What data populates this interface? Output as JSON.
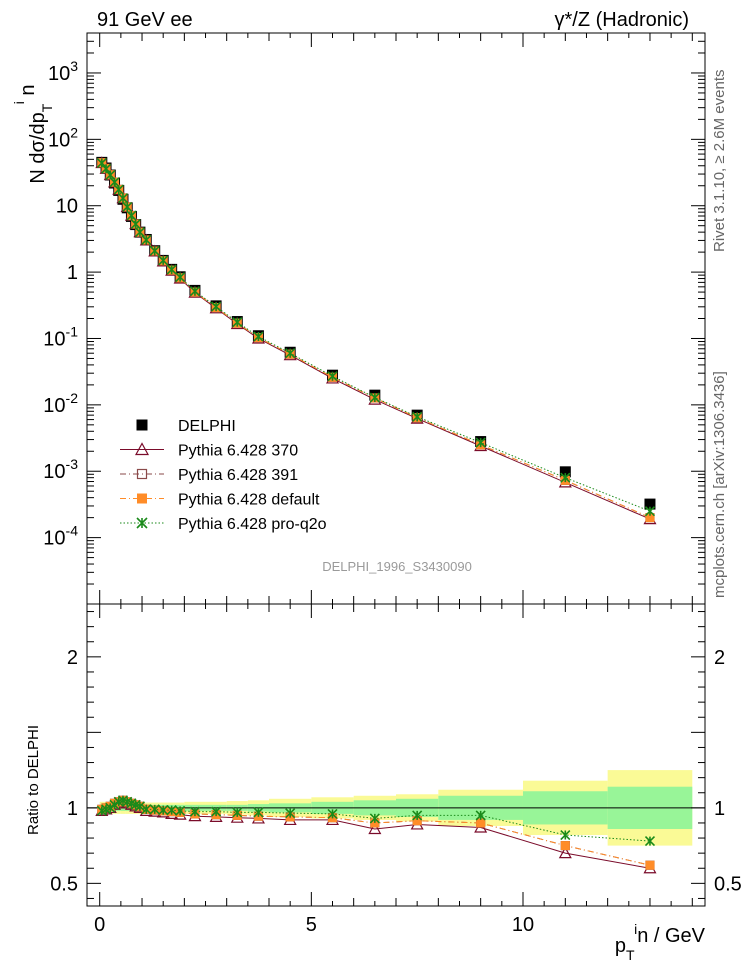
{
  "header": {
    "left_title": "91 GeV ee",
    "right_title": "γ*/Z (Hadronic)"
  },
  "side_labels": {
    "rivet": "Rivet 3.1.10, ≥ 2.6M events",
    "mcplots": "mcplots.cern.ch [arXiv:1306.3436]"
  },
  "watermark": "DELPHI_1996_S3430090",
  "chart_data": [
    {
      "type": "scatter",
      "panel": "main",
      "ylabel": "N dσ/dp_T^i n",
      "yscale": "log",
      "ylim": [
        1e-05,
        4000
      ],
      "xlim": [
        -0.3,
        14.3
      ],
      "ytick_labels": [
        "10^-4",
        "10^-3",
        "10^-2",
        "10^-1",
        "1",
        "10",
        "10^2",
        "10^3"
      ],
      "legend_position": "lower-left",
      "x": [
        0.05,
        0.15,
        0.25,
        0.35,
        0.45,
        0.55,
        0.65,
        0.75,
        0.85,
        0.95,
        1.1,
        1.3,
        1.5,
        1.7,
        1.9,
        2.25,
        2.75,
        3.25,
        3.75,
        4.5,
        5.5,
        6.5,
        7.5,
        9.0,
        11.0,
        13.0
      ],
      "series": [
        {
          "name": "DELPHI",
          "color": "#000000",
          "marker": "filled-square",
          "values": [
            45,
            37,
            29,
            22,
            17,
            12.5,
            9.3,
            6.9,
            5.2,
            4.0,
            3.1,
            2.1,
            1.5,
            1.1,
            0.85,
            0.53,
            0.31,
            0.18,
            0.11,
            0.062,
            0.028,
            0.014,
            0.007,
            0.0028,
            0.00098,
            0.00032
          ]
        },
        {
          "name": "Pythia 6.428 370",
          "color": "#7a0b2a",
          "marker": "open-triangle",
          "line": "solid",
          "values": [
            44,
            36,
            29,
            22.5,
            17.5,
            13,
            9.6,
            7.1,
            5.3,
            4.0,
            3.0,
            2.05,
            1.45,
            1.05,
            0.8,
            0.49,
            0.285,
            0.165,
            0.1,
            0.056,
            0.025,
            0.012,
            0.0062,
            0.0024,
            0.00068,
            0.00019
          ]
        },
        {
          "name": "Pythia 6.428 391",
          "color": "#8a4a4a",
          "marker": "open-square",
          "line": "dashdot",
          "values": [
            44.5,
            36.5,
            29.3,
            22.7,
            17.6,
            13.1,
            9.6,
            7.1,
            5.3,
            4.0,
            3.05,
            2.08,
            1.48,
            1.07,
            0.82,
            0.5,
            0.292,
            0.17,
            0.103,
            0.058,
            0.026,
            0.0127,
            0.0064,
            0.0025,
            0.00073,
            0.0002
          ]
        },
        {
          "name": "Pythia 6.428 default",
          "color": "#ff8c28",
          "marker": "filled-square",
          "line": "dashdot",
          "values": [
            44.5,
            36.5,
            29.3,
            22.7,
            17.6,
            13.1,
            9.6,
            7.1,
            5.3,
            4.0,
            3.05,
            2.08,
            1.48,
            1.07,
            0.82,
            0.5,
            0.292,
            0.17,
            0.103,
            0.058,
            0.026,
            0.0127,
            0.0064,
            0.0025,
            0.00073,
            0.0002
          ]
        },
        {
          "name": "Pythia 6.428 pro-q2o",
          "color": "#1a8a1a",
          "marker": "star",
          "line": "dotted",
          "values": [
            44,
            36,
            29,
            22.6,
            17.5,
            13,
            9.6,
            7.1,
            5.3,
            4.0,
            3.05,
            2.09,
            1.5,
            1.09,
            0.84,
            0.515,
            0.302,
            0.176,
            0.107,
            0.06,
            0.027,
            0.0129,
            0.0066,
            0.0027,
            0.0008,
            0.00025
          ]
        }
      ]
    },
    {
      "type": "line",
      "panel": "ratio",
      "xlabel": "p_T^i n / GeV",
      "ylabel": "Ratio to DELPHI",
      "ylim": [
        0.35,
        2.35
      ],
      "xlim": [
        -0.3,
        14.3
      ],
      "xtick_labels": [
        "0",
        "5",
        "10"
      ],
      "ytick_labels": [
        "0.5",
        "1",
        "2"
      ],
      "bands": {
        "bin_edges": [
          0,
          0.1,
          0.2,
          0.3,
          0.4,
          0.5,
          0.6,
          0.7,
          0.8,
          0.9,
          1.0,
          1.2,
          1.4,
          1.6,
          1.8,
          2.0,
          2.5,
          3.0,
          3.5,
          4.0,
          5.0,
          6.0,
          7.0,
          8.0,
          10.0,
          12.0,
          14.0
        ],
        "stat_halfwidth": [
          0.02,
          0.02,
          0.02,
          0.02,
          0.02,
          0.02,
          0.02,
          0.02,
          0.02,
          0.02,
          0.02,
          0.02,
          0.02,
          0.02,
          0.02,
          0.02,
          0.02,
          0.02,
          0.025,
          0.03,
          0.04,
          0.05,
          0.06,
          0.08,
          0.11,
          0.14
        ],
        "total_halfwidth": [
          0.04,
          0.04,
          0.04,
          0.04,
          0.04,
          0.04,
          0.04,
          0.04,
          0.04,
          0.04,
          0.035,
          0.035,
          0.035,
          0.035,
          0.035,
          0.04,
          0.04,
          0.045,
          0.05,
          0.06,
          0.07,
          0.08,
          0.09,
          0.12,
          0.18,
          0.25
        ],
        "stat_color": "#98f598",
        "total_color": "#fafa96"
      },
      "series": [
        {
          "name": "Pythia 6.428 370",
          "color": "#7a0b2a",
          "marker": "open-triangle",
          "line": "solid",
          "values": [
            0.98,
            0.99,
            1.0,
            1.02,
            1.03,
            1.04,
            1.03,
            1.02,
            1.01,
            1.0,
            0.98,
            0.975,
            0.97,
            0.96,
            0.955,
            0.945,
            0.94,
            0.935,
            0.93,
            0.92,
            0.92,
            0.86,
            0.89,
            0.87,
            0.7,
            0.6
          ]
        },
        {
          "name": "Pythia 6.428 391",
          "color": "#8a4a4a",
          "marker": "open-square",
          "line": "dashdot",
          "values": [
            0.99,
            1.0,
            1.01,
            1.03,
            1.04,
            1.05,
            1.04,
            1.03,
            1.02,
            1.01,
            0.99,
            0.985,
            0.98,
            0.975,
            0.97,
            0.96,
            0.955,
            0.95,
            0.945,
            0.94,
            0.935,
            0.9,
            0.915,
            0.9,
            0.75,
            0.62
          ]
        },
        {
          "name": "Pythia 6.428 default",
          "color": "#ff8c28",
          "marker": "filled-square",
          "line": "dashdot",
          "values": [
            0.99,
            1.0,
            1.01,
            1.03,
            1.04,
            1.05,
            1.04,
            1.03,
            1.02,
            1.01,
            0.99,
            0.985,
            0.98,
            0.975,
            0.97,
            0.96,
            0.955,
            0.95,
            0.945,
            0.94,
            0.935,
            0.9,
            0.915,
            0.9,
            0.75,
            0.62
          ]
        },
        {
          "name": "Pythia 6.428 pro-q2o",
          "color": "#1a8a1a",
          "marker": "star",
          "line": "dotted",
          "values": [
            0.98,
            0.99,
            1.0,
            1.02,
            1.04,
            1.05,
            1.04,
            1.03,
            1.02,
            1.01,
            0.99,
            0.99,
            0.985,
            0.985,
            0.98,
            0.975,
            0.975,
            0.97,
            0.97,
            0.965,
            0.96,
            0.93,
            0.95,
            0.95,
            0.82,
            0.78
          ]
        }
      ]
    }
  ]
}
